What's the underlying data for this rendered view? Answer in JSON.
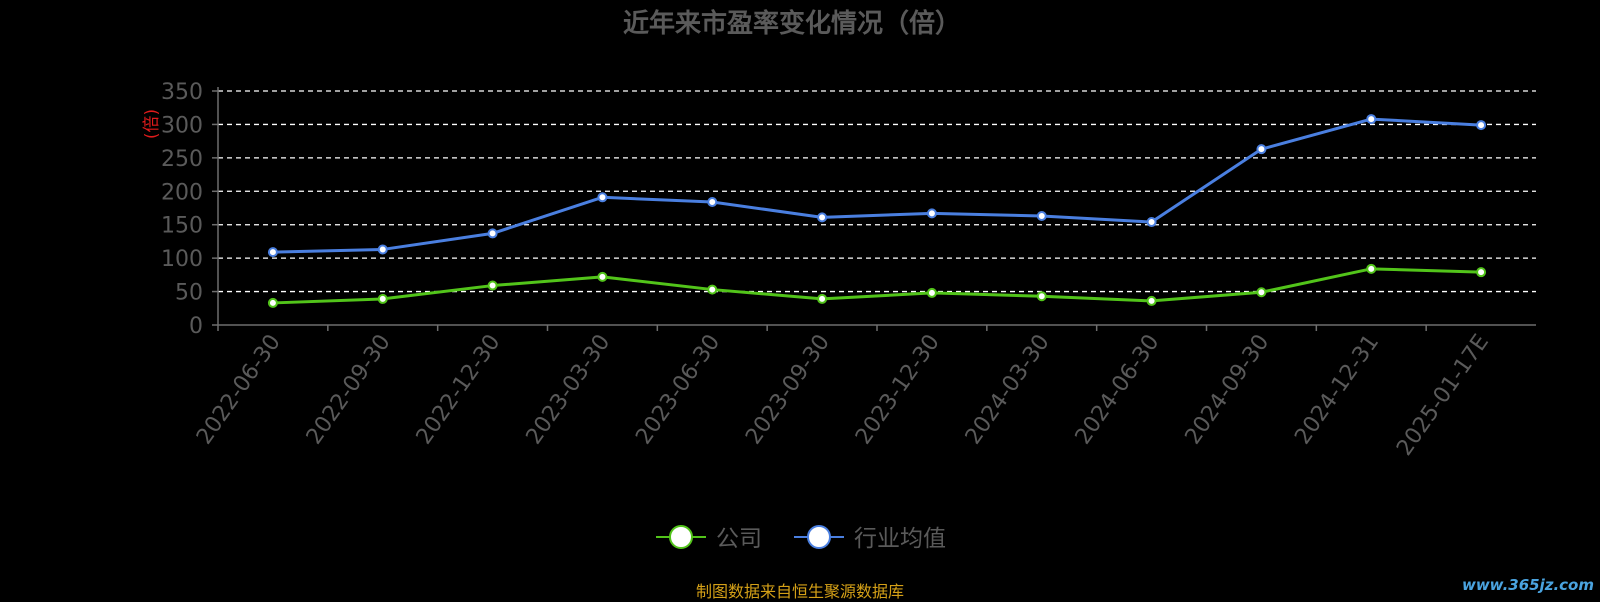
{
  "footer": {
    "source": "制图数据来自恒生聚源数据库",
    "watermark": "www.365jz.com"
  },
  "chart_data": {
    "type": "line",
    "title": "近年来市盈率变化情况（倍）",
    "ylabel": "(倍)",
    "ylim": [
      0,
      350
    ],
    "yticks": [
      0,
      50,
      100,
      150,
      200,
      250,
      300,
      350
    ],
    "grid": true,
    "legend_position": "bottom-center",
    "categories": [
      "2022-06-30",
      "2022-09-30",
      "2022-12-30",
      "2023-03-30",
      "2023-06-30",
      "2023-09-30",
      "2023-12-30",
      "2024-03-30",
      "2024-06-30",
      "2024-09-30",
      "2024-12-31",
      "2025-01-17E"
    ],
    "series": [
      {
        "name": "公司",
        "color": "#52c41a",
        "values": [
          33,
          39,
          59,
          72,
          53,
          39,
          48,
          43,
          36,
          49,
          84,
          79
        ]
      },
      {
        "name": "行业均值",
        "color": "#4a7fe0",
        "values": [
          109,
          113,
          137,
          191,
          184,
          161,
          167,
          163,
          154,
          263,
          308,
          299
        ]
      }
    ]
  }
}
